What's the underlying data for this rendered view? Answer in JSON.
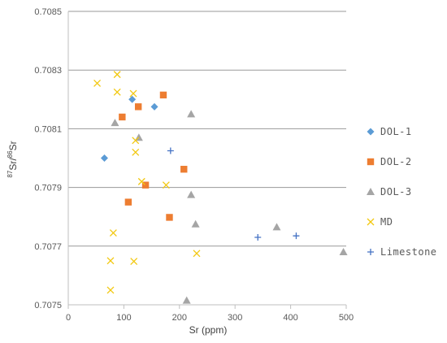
{
  "chart_data": {
    "type": "scatter",
    "xlabel": "Sr (ppm)",
    "ylabel_parts": {
      "sup1": "87",
      "base1": "Sr/",
      "sup2": "86",
      "base2": "Sr"
    },
    "xlim": [
      0,
      500
    ],
    "ylim": [
      0.7075,
      0.7085
    ],
    "x_ticks": [
      0,
      100,
      200,
      300,
      400,
      500
    ],
    "y_ticks": [
      "0.7075",
      "0.7077",
      "0.7079",
      "0.7081",
      "0.7083",
      "0.7085"
    ],
    "grid": "horizontal",
    "legend_position": "right",
    "series": [
      {
        "name": "DOL-1",
        "marker": "diamond",
        "color": "#5B9BD5",
        "points": [
          [
            65,
            0.708
          ],
          [
            115,
            0.7082
          ],
          [
            155,
            0.708175
          ]
        ]
      },
      {
        "name": "DOL-2",
        "marker": "square",
        "color": "#ED7D31",
        "points": [
          [
            97,
            0.70814
          ],
          [
            126,
            0.708175
          ],
          [
            171,
            0.708215
          ],
          [
            108,
            0.70785
          ],
          [
            139,
            0.707908
          ],
          [
            182,
            0.707798
          ],
          [
            208,
            0.707962
          ]
        ]
      },
      {
        "name": "DOL-3",
        "marker": "triangle",
        "color": "#A5A5A5",
        "points": [
          [
            84,
            0.70812
          ],
          [
            127,
            0.70807
          ],
          [
            221,
            0.70815
          ],
          [
            221,
            0.707875
          ],
          [
            229,
            0.707775
          ],
          [
            375,
            0.707765
          ],
          [
            495,
            0.70768
          ],
          [
            213,
            0.707515
          ]
        ]
      },
      {
        "name": "MD",
        "marker": "x",
        "color": "#F2C80F",
        "points": [
          [
            52,
            0.708255
          ],
          [
            88,
            0.708285
          ],
          [
            88,
            0.708225
          ],
          [
            117,
            0.70822
          ],
          [
            121,
            0.70806
          ],
          [
            121,
            0.70802
          ],
          [
            132,
            0.70792
          ],
          [
            176,
            0.707908
          ],
          [
            81,
            0.707745
          ],
          [
            76,
            0.70765
          ],
          [
            118,
            0.707648
          ],
          [
            231,
            0.707675
          ],
          [
            76,
            0.70755
          ]
        ]
      },
      {
        "name": "Limestone",
        "marker": "plus",
        "color": "#4472C4",
        "points": [
          [
            184,
            0.708025
          ],
          [
            341,
            0.70773
          ],
          [
            410,
            0.707735
          ]
        ]
      }
    ]
  }
}
